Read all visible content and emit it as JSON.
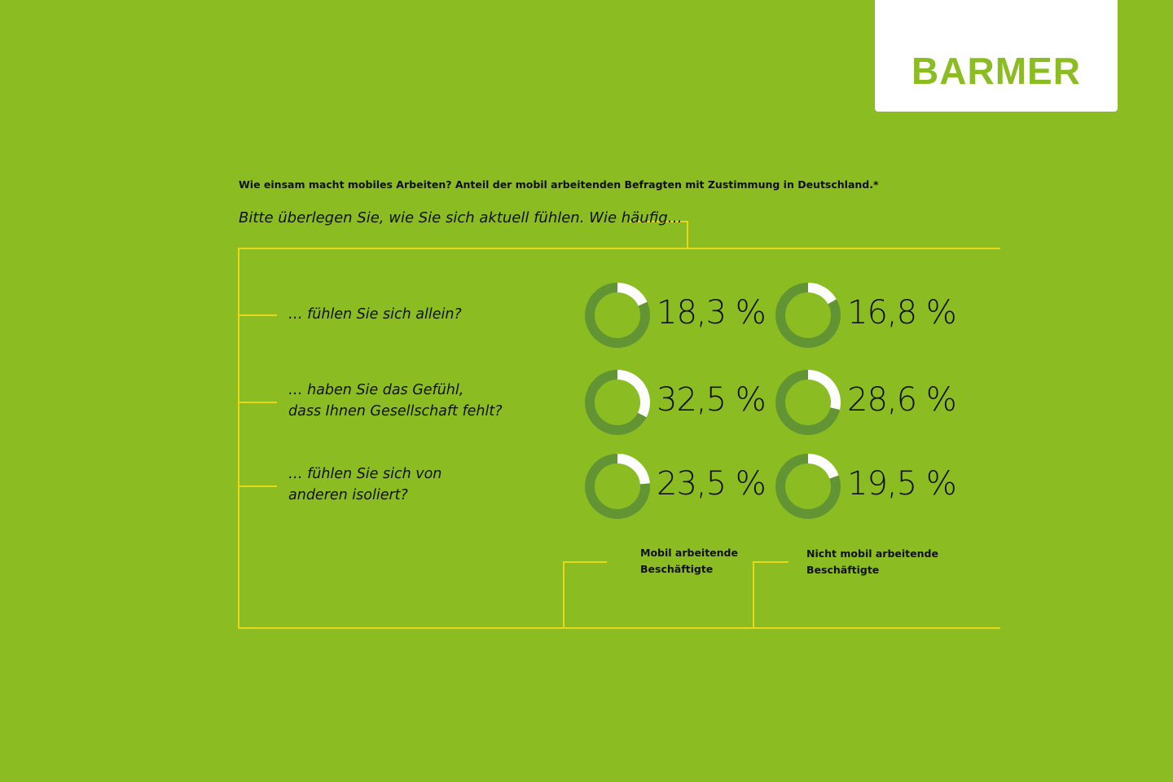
{
  "logo": "BARMER",
  "chart_data": {
    "type": "donut",
    "title": "Wie einsam macht mobiles Arbeiten? Anteil der mobil arbeitenden Befragten mit Zustimmung in Deutschland.*",
    "subtitle": "Bitte überlegen Sie, wie Sie sich aktuell fühlen. Wie häufig…",
    "categories": [
      "… fühlen Sie sich allein?",
      "… haben Sie das Gefühl,\ndass Ihnen Gesellschaft fehlt?",
      "… fühlen Sie sich von\nanderen isoliert?"
    ],
    "track_color": "#639434",
    "series": [
      {
        "name": "Mobil arbeitende\nBeschäftigte",
        "color": "#ffffff",
        "values": [
          18.3,
          32.5,
          23.5
        ],
        "value_labels": [
          "18,3 %",
          "32,5 %",
          "23,5 %"
        ]
      },
      {
        "name": "Nicht mobil arbeitende\nBeschäftigte",
        "color": "#ffffff",
        "values": [
          16.8,
          28.6,
          19.5
        ],
        "value_labels": [
          "16,8 %",
          "28,6 %",
          "19,5 %"
        ]
      }
    ]
  }
}
